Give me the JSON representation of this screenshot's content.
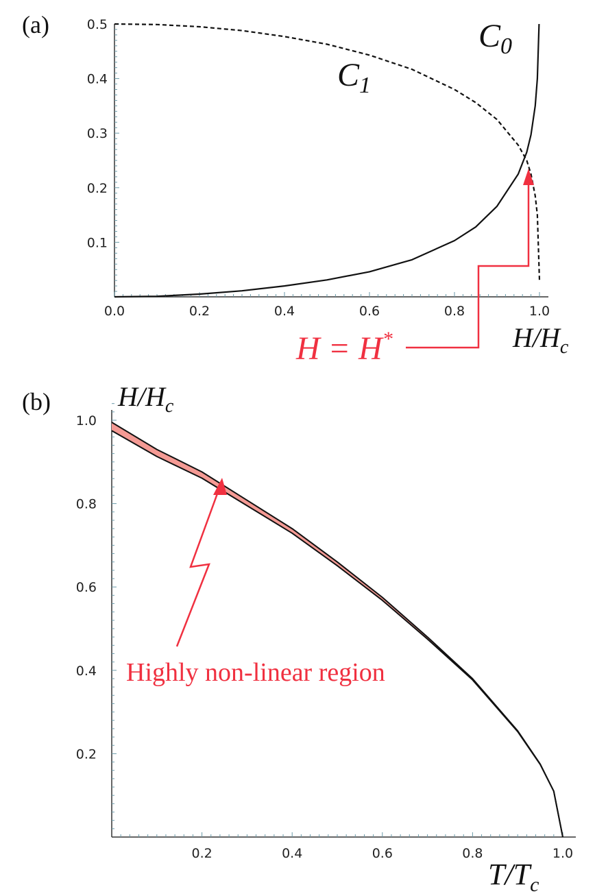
{
  "chart_data": [
    {
      "type": "line",
      "panel_label": "(a)",
      "xlabel": "H/H_c",
      "xlim": [
        0,
        1.0
      ],
      "ylim": [
        0,
        0.5
      ],
      "xticks": [
        "0.0",
        "0.2",
        "0.4",
        "0.6",
        "0.8",
        "1.0"
      ],
      "yticks": [
        "0.1",
        "0.2",
        "0.3",
        "0.4",
        "0.5"
      ],
      "series": [
        {
          "name": "C_0",
          "style": "solid",
          "color": "#111111",
          "x": [
            0.0,
            0.1,
            0.2,
            0.3,
            0.4,
            0.5,
            0.6,
            0.7,
            0.8,
            0.85,
            0.9,
            0.95,
            0.97,
            0.98,
            0.99,
            0.995,
            0.999
          ],
          "y": [
            0.0,
            0.001,
            0.005,
            0.011,
            0.02,
            0.031,
            0.046,
            0.068,
            0.103,
            0.128,
            0.166,
            0.225,
            0.265,
            0.297,
            0.35,
            0.4,
            0.5
          ]
        },
        {
          "name": "C_1",
          "style": "dashed",
          "color": "#111111",
          "x": [
            0.0,
            0.1,
            0.2,
            0.3,
            0.4,
            0.5,
            0.6,
            0.7,
            0.8,
            0.85,
            0.9,
            0.95,
            0.97,
            0.98,
            0.99,
            0.995,
            1.0
          ],
          "y": [
            0.5,
            0.499,
            0.495,
            0.488,
            0.477,
            0.463,
            0.443,
            0.417,
            0.38,
            0.356,
            0.325,
            0.278,
            0.25,
            0.225,
            0.185,
            0.15,
            0.03
          ]
        }
      ],
      "annotations": [
        {
          "text": "H = H*",
          "color": "#f03040",
          "points_to_x": 0.975,
          "points_to_y": 0.26
        }
      ]
    },
    {
      "type": "area",
      "panel_label": "(b)",
      "xlabel": "T/T_c",
      "ylabel": "H/H_c",
      "xlim": [
        0,
        1.0
      ],
      "ylim": [
        0,
        1.05
      ],
      "xticks": [
        "0.2",
        "0.4",
        "0.6",
        "0.8",
        "1.0"
      ],
      "yticks": [
        "0.2",
        "0.4",
        "0.6",
        "0.8",
        "1.0"
      ],
      "series": [
        {
          "name": "upper boundary",
          "x": [
            0.0,
            0.1,
            0.2,
            0.3,
            0.4,
            0.5,
            0.6,
            0.7,
            0.8,
            0.9,
            0.95,
            0.98,
            1.0
          ],
          "y": [
            0.995,
            0.93,
            0.876,
            0.808,
            0.74,
            0.66,
            0.575,
            0.48,
            0.38,
            0.255,
            0.175,
            0.11,
            0.0
          ]
        },
        {
          "name": "lower boundary",
          "x": [
            0.0,
            0.1,
            0.2,
            0.3,
            0.4,
            0.5,
            0.6,
            0.7,
            0.8,
            0.9,
            0.95,
            0.98,
            1.0
          ],
          "y": [
            0.975,
            0.913,
            0.861,
            0.795,
            0.729,
            0.651,
            0.568,
            0.475,
            0.377,
            0.253,
            0.174,
            0.11,
            0.0
          ]
        }
      ],
      "fill_color": "#f49a94",
      "annotations": [
        {
          "text": "Highly non-linear region",
          "color": "#f03040",
          "points_to_x": 0.25,
          "points_to_y": 0.855
        }
      ]
    }
  ],
  "labels": {
    "a_panel": "(a)",
    "b_panel": "(b)",
    "c0_main": "C",
    "c0_sub": "0",
    "c1_main": "C",
    "c1_sub": "1",
    "a_xlabel_main": "H/H",
    "a_xlabel_sub": "c",
    "a_annotation": "H = H",
    "a_annotation_star": "*",
    "b_ylabel_main": "H/H",
    "b_ylabel_sub": "c",
    "b_xlabel_main": "T/T",
    "b_xlabel_sub": "c",
    "b_annotation": "Highly non-linear region"
  }
}
